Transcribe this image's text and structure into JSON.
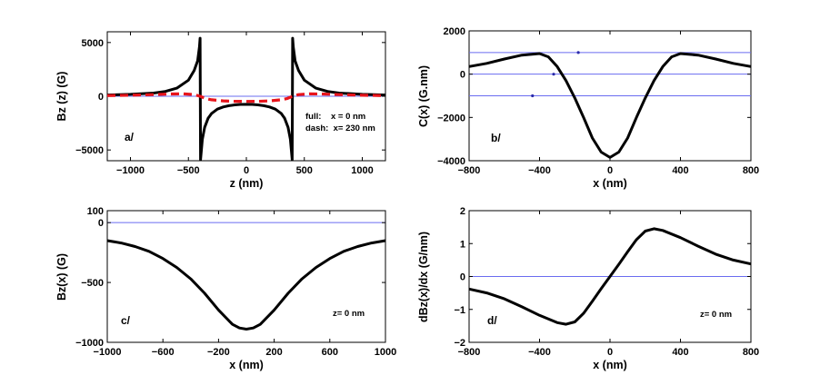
{
  "chart_data": [
    {
      "id": "a",
      "type": "line",
      "panel_label": "a/",
      "xlabel": "z (nm)",
      "ylabel": "Bz (z)  (G)",
      "xlim": [
        -1200,
        1200
      ],
      "ylim": [
        -6000,
        6000
      ],
      "xticks": [
        -1000,
        -500,
        0,
        500,
        1000
      ],
      "xtick_labels": [
        "−1000",
        "−500",
        "0",
        "500",
        "1000"
      ],
      "yticks": [
        -5000,
        0,
        5000
      ],
      "ytick_labels": [
        "−5000",
        "0",
        "5000"
      ],
      "hlines": [
        0
      ],
      "annotations": [
        "full:    x = 0 nm",
        "dash:  x= 230 nm"
      ],
      "series": [
        {
          "name": "full (x = 0 nm)",
          "style": "solid",
          "color": "#000000",
          "x": [
            -1200,
            -1000,
            -800,
            -700,
            -600,
            -500,
            -450,
            -420,
            -405,
            -399,
            -395,
            -380,
            -360,
            -330,
            -300,
            -250,
            -200,
            -150,
            -100,
            -50,
            0,
            50,
            100,
            150,
            200,
            250,
            300,
            330,
            360,
            380,
            395,
            399,
            405,
            420,
            450,
            500,
            600,
            700,
            800,
            1000,
            1200
          ],
          "y": [
            120,
            180,
            300,
            450,
            750,
            1500,
            2400,
            3300,
            4600,
            5400,
            -5900,
            -4000,
            -2900,
            -2050,
            -1600,
            -1200,
            -1000,
            -880,
            -800,
            -760,
            -750,
            -760,
            -800,
            -880,
            -1000,
            -1200,
            -1600,
            -2050,
            -2900,
            -4000,
            -5900,
            5400,
            4600,
            3300,
            2400,
            1500,
            750,
            450,
            300,
            180,
            120
          ]
        },
        {
          "name": "dash (x = 230 nm)",
          "style": "dashed",
          "color": "#e8141b",
          "x": [
            -1200,
            -1000,
            -800,
            -650,
            -550,
            -450,
            -400,
            -350,
            -300,
            -200,
            -100,
            0,
            100,
            200,
            300,
            350,
            400,
            450,
            550,
            650,
            800,
            1000,
            1200
          ],
          "y": [
            60,
            90,
            150,
            210,
            230,
            150,
            0,
            -220,
            -330,
            -430,
            -470,
            -480,
            -470,
            -430,
            -330,
            -220,
            0,
            150,
            230,
            210,
            150,
            90,
            60
          ]
        }
      ]
    },
    {
      "id": "b",
      "type": "line",
      "panel_label": "b/",
      "xlabel": "x (nm)",
      "ylabel": "C(x)  (G.nm)",
      "xlim": [
        -800,
        800
      ],
      "ylim": [
        -4000,
        2000
      ],
      "xticks": [
        -800,
        -400,
        0,
        400,
        800
      ],
      "xtick_labels": [
        "−800",
        "−400",
        "0",
        "400",
        "800"
      ],
      "yticks": [
        -4000,
        -2000,
        0,
        2000
      ],
      "ytick_labels": [
        "−4000",
        "−2000",
        "0",
        "2000"
      ],
      "hlines": [
        1000,
        0,
        -1000
      ],
      "markers": [
        {
          "x": -180,
          "y": 1000
        },
        {
          "x": -320,
          "y": 0
        },
        {
          "x": -440,
          "y": -1000
        }
      ],
      "series": [
        {
          "name": "C(x)",
          "style": "solid",
          "color": "#000000",
          "x": [
            -800,
            -700,
            -600,
            -500,
            -400,
            -350,
            -300,
            -250,
            -200,
            -150,
            -100,
            -50,
            0,
            50,
            100,
            150,
            200,
            250,
            300,
            350,
            400,
            500,
            600,
            700,
            800
          ],
          "y": [
            350,
            500,
            700,
            880,
            950,
            800,
            350,
            -300,
            -1100,
            -2000,
            -2950,
            -3600,
            -3850,
            -3600,
            -2950,
            -2000,
            -1100,
            -300,
            350,
            800,
            950,
            880,
            700,
            500,
            350
          ]
        }
      ]
    },
    {
      "id": "c",
      "type": "line",
      "panel_label": "c/",
      "annotation": "z= 0 nm",
      "xlabel": "x (nm)",
      "ylabel": "Bz(x)  (G)",
      "xlim": [
        -1000,
        1000
      ],
      "ylim": [
        -1000,
        100
      ],
      "xticks": [
        -1000,
        -600,
        -200,
        200,
        600,
        1000
      ],
      "xtick_labels": [
        "−1000",
        "−600",
        "−200",
        "200",
        "600",
        "1000"
      ],
      "yticks": [
        -1000,
        -500,
        0,
        100
      ],
      "ytick_labels": [
        "−1000",
        "−500",
        "0",
        "100"
      ],
      "hlines": [
        0
      ],
      "series": [
        {
          "name": "Bz(x)",
          "style": "solid",
          "color": "#000000",
          "x": [
            -1000,
            -900,
            -800,
            -700,
            -600,
            -500,
            -400,
            -300,
            -200,
            -100,
            -50,
            0,
            50,
            100,
            200,
            300,
            400,
            500,
            600,
            700,
            800,
            900,
            1000
          ],
          "y": [
            -150,
            -170,
            -200,
            -240,
            -300,
            -375,
            -470,
            -590,
            -730,
            -850,
            -880,
            -890,
            -880,
            -850,
            -730,
            -590,
            -470,
            -375,
            -300,
            -240,
            -200,
            -170,
            -150
          ]
        }
      ]
    },
    {
      "id": "d",
      "type": "line",
      "panel_label": "d/",
      "annotation": "z= 0 nm",
      "xlabel": "x (nm)",
      "ylabel": "dBz(x)/dx   (G/nm)",
      "xlim": [
        -800,
        800
      ],
      "ylim": [
        -2,
        2
      ],
      "xticks": [
        -800,
        -400,
        0,
        400,
        800
      ],
      "xtick_labels": [
        "−800",
        "−400",
        "0",
        "400",
        "800"
      ],
      "yticks": [
        -2,
        -1,
        0,
        1,
        2
      ],
      "ytick_labels": [
        "−2",
        "−1",
        "0",
        "1",
        "2"
      ],
      "hlines": [
        0
      ],
      "series": [
        {
          "name": "dBz/dx",
          "style": "solid",
          "color": "#000000",
          "x": [
            -800,
            -700,
            -600,
            -500,
            -400,
            -300,
            -250,
            -200,
            -150,
            -100,
            -50,
            0,
            50,
            100,
            150,
            200,
            250,
            300,
            400,
            500,
            600,
            700,
            800
          ],
          "y": [
            -0.38,
            -0.5,
            -0.68,
            -0.92,
            -1.18,
            -1.4,
            -1.45,
            -1.38,
            -1.12,
            -0.75,
            -0.37,
            0,
            0.37,
            0.75,
            1.12,
            1.38,
            1.45,
            1.4,
            1.18,
            0.92,
            0.68,
            0.5,
            0.38
          ]
        }
      ]
    }
  ],
  "colors": {
    "curve": "#000000",
    "dashed_curve": "#e8141b",
    "reference_line": "#6a6cf0",
    "marker": "#2a2aaa"
  }
}
